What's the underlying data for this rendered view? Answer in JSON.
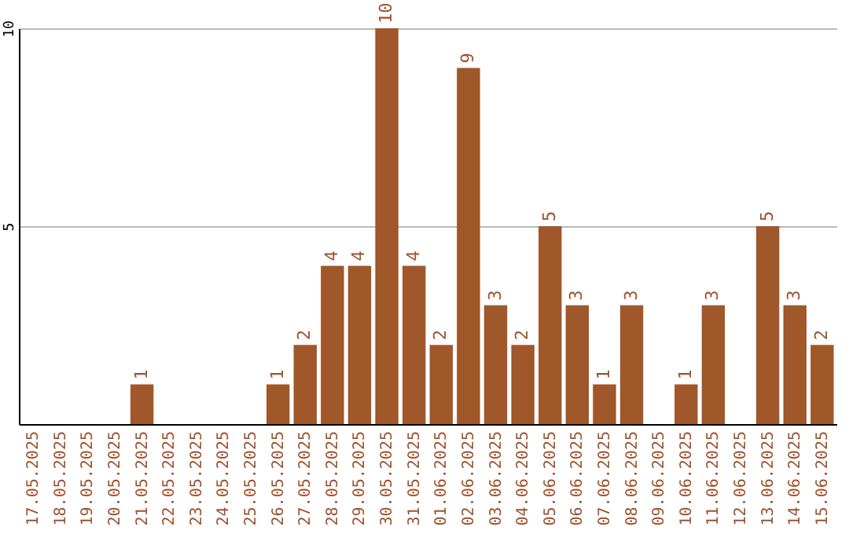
{
  "chart_data": {
    "type": "bar",
    "categories": [
      "17.05.2025",
      "18.05.2025",
      "19.05.2025",
      "20.05.2025",
      "21.05.2025",
      "22.05.2025",
      "23.05.2025",
      "24.05.2025",
      "25.05.2025",
      "26.05.2025",
      "27.05.2025",
      "28.05.2025",
      "29.05.2025",
      "30.05.2025",
      "31.05.2025",
      "01.06.2025",
      "02.06.2025",
      "03.06.2025",
      "04.06.2025",
      "05.06.2025",
      "06.06.2025",
      "07.06.2025",
      "08.06.2025",
      "09.06.2025",
      "10.06.2025",
      "11.06.2025",
      "12.06.2025",
      "13.06.2025",
      "14.06.2025",
      "15.06.2025"
    ],
    "values": [
      0,
      0,
      0,
      0,
      1,
      0,
      0,
      0,
      0,
      1,
      2,
      4,
      4,
      10,
      4,
      2,
      9,
      3,
      2,
      5,
      3,
      1,
      3,
      0,
      1,
      3,
      0,
      5,
      3,
      2
    ],
    "value_labels": [
      null,
      null,
      null,
      null,
      "1",
      null,
      null,
      null,
      null,
      "1",
      "2",
      "4",
      "4",
      "10",
      "4",
      "2",
      "9",
      "3",
      "2",
      "5",
      "3",
      "1",
      "3",
      null,
      "1",
      "3",
      null,
      "5",
      "3",
      "2"
    ],
    "color": "#a0572a",
    "ylim": [
      0,
      10
    ],
    "yticks": [
      5,
      10
    ],
    "grid": "y"
  }
}
